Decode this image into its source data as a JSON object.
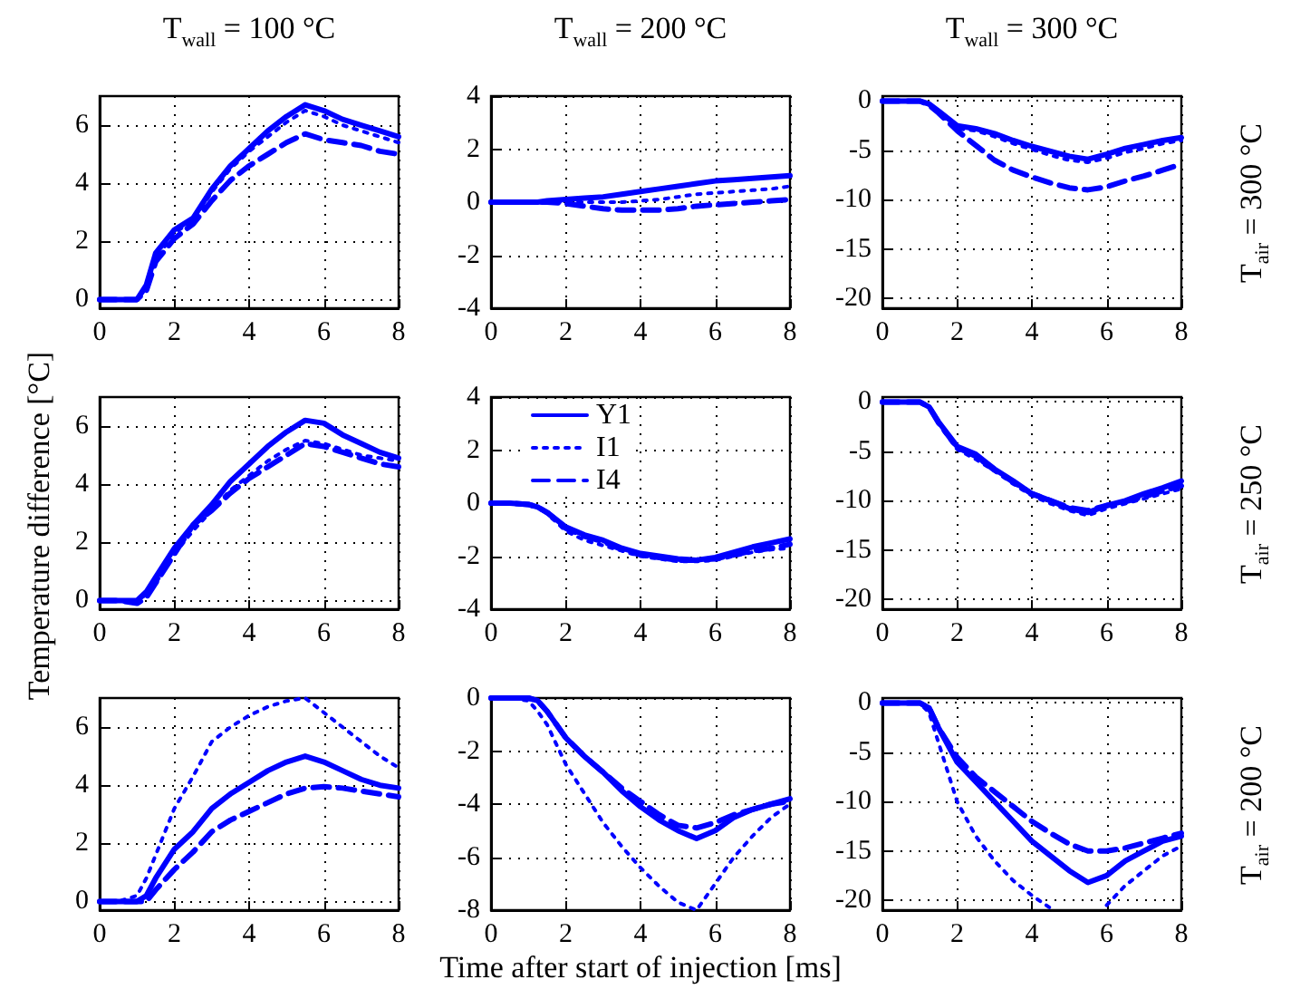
{
  "chart_data": [
    {
      "type": "line",
      "title": "T$_{wall}$ = 100 °C",
      "x": [
        0,
        0.5,
        1,
        1.25,
        1.5,
        2,
        2.5,
        3,
        3.5,
        4,
        4.5,
        5,
        5.5,
        6,
        6.5,
        7,
        7.5,
        8
      ],
      "xlim": [
        0,
        8
      ],
      "xticks": [
        0,
        2,
        4,
        6,
        8
      ],
      "ylim": [
        -0.3,
        7
      ],
      "yticks": [
        0,
        2,
        4,
        6
      ],
      "grid": true,
      "color": "#0000ff",
      "series": [
        {
          "line_style": "solid",
          "values": [
            0,
            0,
            0,
            0.5,
            1.6,
            2.4,
            2.8,
            3.8,
            4.6,
            5.2,
            5.8,
            6.3,
            6.7,
            6.5,
            6.2,
            6.0,
            5.8,
            5.6
          ]
        },
        {
          "line_style": "dotted",
          "values": [
            0,
            0,
            0,
            0.4,
            1.4,
            2.3,
            2.7,
            3.7,
            4.5,
            5.1,
            5.6,
            6.1,
            6.5,
            6.3,
            6.0,
            5.8,
            5.6,
            5.4
          ]
        },
        {
          "line_style": "dashed",
          "values": [
            0,
            0,
            0,
            0.3,
            1.3,
            2.1,
            2.6,
            3.4,
            4.1,
            4.6,
            5.0,
            5.4,
            5.7,
            5.5,
            5.4,
            5.3,
            5.1,
            5.0
          ]
        }
      ]
    },
    {
      "type": "line",
      "title": "T$_{wall}$ = 200 °C",
      "x": [
        0,
        0.5,
        1,
        1.25,
        1.5,
        2,
        2.5,
        3,
        3.5,
        4,
        4.5,
        5,
        5.5,
        6,
        6.5,
        7,
        7.5,
        8
      ],
      "xlim": [
        0,
        8
      ],
      "xticks": [
        0,
        2,
        4,
        6,
        8
      ],
      "ylim": [
        -4,
        4
      ],
      "yticks": [
        -4,
        -2,
        0,
        2,
        4
      ],
      "grid": true,
      "color": "#0000ff",
      "series": [
        {
          "line_style": "solid",
          "values": [
            0,
            0,
            0,
            0,
            0.05,
            0.1,
            0.15,
            0.2,
            0.3,
            0.4,
            0.5,
            0.6,
            0.7,
            0.8,
            0.85,
            0.9,
            0.95,
            1.0
          ]
        },
        {
          "line_style": "dotted",
          "values": [
            0,
            0,
            0,
            0,
            0,
            0,
            0,
            0,
            0,
            0.05,
            0.1,
            0.2,
            0.3,
            0.35,
            0.4,
            0.45,
            0.5,
            0.6
          ]
        },
        {
          "line_style": "dashed",
          "values": [
            0,
            0,
            0,
            0,
            0,
            -0.05,
            -0.15,
            -0.25,
            -0.3,
            -0.3,
            -0.3,
            -0.25,
            -0.15,
            -0.1,
            -0.05,
            0,
            0.05,
            0.1
          ]
        }
      ]
    },
    {
      "type": "line",
      "title": "T$_{wall}$ = 300 °C",
      "y2label": "T$_{air}$ = 300 °C",
      "x": [
        0,
        0.5,
        1,
        1.25,
        1.5,
        2,
        2.5,
        3,
        3.5,
        4,
        4.5,
        5,
        5.5,
        6,
        6.5,
        7,
        7.5,
        8
      ],
      "xlim": [
        0,
        8
      ],
      "xticks": [
        0,
        2,
        4,
        6,
        8
      ],
      "ylim": [
        -21,
        0.5
      ],
      "yticks": [
        -20,
        -15,
        -10,
        -5,
        0
      ],
      "grid": true,
      "color": "#0000ff",
      "series": [
        {
          "line_style": "solid",
          "values": [
            0,
            0,
            0,
            -0.3,
            -1,
            -2.5,
            -2.8,
            -3.3,
            -4,
            -4.6,
            -5.1,
            -5.6,
            -5.9,
            -5.4,
            -4.8,
            -4.4,
            -4,
            -3.7
          ]
        },
        {
          "line_style": "dotted",
          "values": [
            0,
            0,
            0,
            -0.4,
            -1.2,
            -2.8,
            -3,
            -3.6,
            -4.3,
            -4.9,
            -5.5,
            -6,
            -6.2,
            -5.8,
            -5.2,
            -4.8,
            -4.3,
            -4
          ]
        },
        {
          "line_style": "dashed",
          "values": [
            0,
            0,
            0,
            -0.4,
            -1.2,
            -3,
            -4.5,
            -6,
            -7,
            -7.7,
            -8.3,
            -8.8,
            -9,
            -8.7,
            -8.1,
            -7.6,
            -7,
            -6.4
          ]
        }
      ]
    },
    {
      "type": "line",
      "ylabel": "Temperature difference [°C]",
      "x": [
        0,
        0.5,
        1,
        1.25,
        1.5,
        2,
        2.5,
        3,
        3.5,
        4,
        4.5,
        5,
        5.5,
        6,
        6.5,
        7,
        7.5,
        8
      ],
      "xlim": [
        0,
        8
      ],
      "xticks": [
        0,
        2,
        4,
        6,
        8
      ],
      "ylim": [
        -0.3,
        7
      ],
      "yticks": [
        0,
        2,
        4,
        6
      ],
      "grid": true,
      "color": "#0000ff",
      "series": [
        {
          "line_style": "solid",
          "values": [
            0,
            0,
            0,
            0.3,
            0.8,
            1.8,
            2.6,
            3.3,
            4.1,
            4.7,
            5.3,
            5.8,
            6.2,
            6.1,
            5.7,
            5.4,
            5.1,
            4.9
          ]
        },
        {
          "line_style": "dotted",
          "values": [
            0,
            0,
            0,
            0.2,
            0.6,
            1.6,
            2.4,
            3.1,
            3.8,
            4.3,
            4.8,
            5.2,
            5.5,
            5.4,
            5.2,
            5.0,
            4.9,
            4.8
          ]
        },
        {
          "line_style": "dashed",
          "values": [
            0,
            0,
            -0.1,
            0.1,
            0.6,
            1.6,
            2.6,
            3.1,
            3.7,
            4.2,
            4.6,
            5.0,
            5.4,
            5.3,
            5.1,
            4.9,
            4.7,
            4.6
          ]
        }
      ]
    },
    {
      "type": "line",
      "x": [
        0,
        0.5,
        1,
        1.25,
        1.5,
        2,
        2.5,
        3,
        3.5,
        4,
        4.5,
        5,
        5.5,
        6,
        6.5,
        7,
        7.5,
        8
      ],
      "xlim": [
        0,
        8
      ],
      "xticks": [
        0,
        2,
        4,
        6,
        8
      ],
      "ylim": [
        -4,
        4
      ],
      "yticks": [
        -4,
        -2,
        0,
        2,
        4
      ],
      "grid": true,
      "legend": "top left",
      "color": "#0000ff",
      "series": [
        {
          "name": "Y1",
          "line_style": "solid",
          "values": [
            0,
            0,
            -0.05,
            -0.15,
            -0.35,
            -0.9,
            -1.2,
            -1.4,
            -1.7,
            -1.9,
            -2,
            -2.1,
            -2.15,
            -2.05,
            -1.85,
            -1.65,
            -1.5,
            -1.35
          ]
        },
        {
          "name": "I1",
          "line_style": "dotted",
          "values": [
            0,
            0,
            -0.05,
            -0.15,
            -0.4,
            -1.05,
            -1.4,
            -1.6,
            -1.8,
            -2.0,
            -2.1,
            -2.2,
            -2.2,
            -2.15,
            -2.0,
            -1.85,
            -1.75,
            -1.7
          ]
        },
        {
          "name": "I4",
          "line_style": "dashed",
          "values": [
            0,
            0,
            -0.05,
            -0.15,
            -0.35,
            -0.95,
            -1.25,
            -1.45,
            -1.75,
            -1.95,
            -2.05,
            -2.15,
            -2.15,
            -2.1,
            -1.95,
            -1.8,
            -1.7,
            -1.55
          ]
        }
      ]
    },
    {
      "type": "line",
      "y2label": "T$_{air}$ = 250 °C",
      "x": [
        0,
        0.5,
        1,
        1.25,
        1.5,
        2,
        2.5,
        3,
        3.5,
        4,
        4.5,
        5,
        5.5,
        6,
        6.5,
        7,
        7.5,
        8
      ],
      "xlim": [
        0,
        8
      ],
      "xticks": [
        0,
        2,
        4,
        6,
        8
      ],
      "ylim": [
        -21,
        0.5
      ],
      "yticks": [
        -20,
        -15,
        -10,
        -5,
        0
      ],
      "grid": true,
      "color": "#0000ff",
      "series": [
        {
          "line_style": "solid",
          "values": [
            0,
            0,
            0,
            -0.5,
            -2,
            -4.5,
            -5.3,
            -6.8,
            -8,
            -9.3,
            -10,
            -10.8,
            -11.2,
            -10.5,
            -10,
            -9.3,
            -8.7,
            -8
          ]
        },
        {
          "line_style": "dotted",
          "values": [
            0,
            0,
            0,
            -0.5,
            -2.2,
            -4.8,
            -5.8,
            -7,
            -8.3,
            -9.5,
            -10.3,
            -11,
            -11.5,
            -10.8,
            -10.3,
            -9.8,
            -9.3,
            -8.8
          ]
        },
        {
          "line_style": "dashed",
          "values": [
            0,
            0,
            0,
            -0.5,
            -2.1,
            -4.6,
            -5.5,
            -6.9,
            -8.1,
            -9.3,
            -10,
            -10.7,
            -11,
            -10.5,
            -10.1,
            -9.6,
            -9,
            -8.5
          ]
        }
      ]
    },
    {
      "type": "line",
      "x": [
        0,
        0.5,
        1,
        1.25,
        1.5,
        2,
        2.5,
        3,
        3.5,
        4,
        4.5,
        5,
        5.5,
        6,
        6.5,
        7,
        7.5,
        8
      ],
      "xlim": [
        0,
        8
      ],
      "xticks": [
        0,
        2,
        4,
        6,
        8
      ],
      "ylim": [
        -0.3,
        7
      ],
      "yticks": [
        0,
        2,
        4,
        6
      ],
      "grid": true,
      "color": "#0000ff",
      "series": [
        {
          "line_style": "solid",
          "values": [
            0,
            0,
            0,
            0.2,
            0.8,
            1.8,
            2.4,
            3.2,
            3.7,
            4.1,
            4.5,
            4.8,
            5.0,
            4.8,
            4.5,
            4.2,
            4.0,
            3.9
          ]
        },
        {
          "line_style": "dotted",
          "values": [
            0,
            0,
            0.2,
            0.8,
            1.6,
            3.2,
            4.3,
            5.5,
            6.0,
            6.4,
            6.7,
            6.9,
            7.0,
            6.5,
            6.0,
            5.5,
            5.0,
            4.6
          ]
        },
        {
          "line_style": "dashed",
          "values": [
            0,
            0,
            0,
            0,
            0.4,
            1.1,
            1.7,
            2.4,
            2.8,
            3.1,
            3.4,
            3.7,
            3.9,
            3.95,
            3.9,
            3.8,
            3.7,
            3.6
          ]
        }
      ]
    },
    {
      "type": "line",
      "xlabel": "Time after start of injection [ms]",
      "x": [
        0,
        0.5,
        1,
        1.25,
        1.5,
        2,
        2.5,
        3,
        3.5,
        4,
        4.5,
        5,
        5.5,
        6,
        6.5,
        7,
        7.5,
        8
      ],
      "xlim": [
        0,
        8
      ],
      "xticks": [
        0,
        2,
        4,
        6,
        8
      ],
      "ylim": [
        -8,
        0
      ],
      "yticks": [
        -8,
        -6,
        -4,
        -2,
        0
      ],
      "grid": true,
      "color": "#0000ff",
      "series": [
        {
          "line_style": "solid",
          "values": [
            0,
            0,
            0,
            -0.1,
            -0.5,
            -1.5,
            -2.2,
            -2.8,
            -3.5,
            -4.1,
            -4.6,
            -5.0,
            -5.3,
            -5.0,
            -4.5,
            -4.2,
            -4.0,
            -3.8
          ]
        },
        {
          "line_style": "dotted",
          "values": [
            0,
            0,
            -0.1,
            -0.5,
            -1,
            -2.5,
            -3.6,
            -4.7,
            -5.6,
            -6.4,
            -7.1,
            -7.7,
            -8,
            -7,
            -6,
            -5.2,
            -4.5,
            -4.0
          ]
        },
        {
          "line_style": "dashed",
          "values": [
            0,
            0,
            0,
            -0.1,
            -0.5,
            -1.5,
            -2.2,
            -2.8,
            -3.4,
            -3.9,
            -4.4,
            -4.8,
            -4.9,
            -4.7,
            -4.4,
            -4.2,
            -4.0,
            -3.9
          ]
        }
      ]
    },
    {
      "type": "line",
      "y2label": "T$_{air}$ = 200 °C",
      "x": [
        0,
        0.5,
        1,
        1.25,
        1.5,
        2,
        2.5,
        3,
        3.5,
        4,
        4.5,
        5,
        5.5,
        6,
        6.5,
        7,
        7.5,
        8
      ],
      "xlim": [
        0,
        8
      ],
      "xticks": [
        0,
        2,
        4,
        6,
        8
      ],
      "ylim": [
        -21,
        0.5
      ],
      "yticks": [
        -20,
        -15,
        -10,
        -5,
        0
      ],
      "grid": true,
      "color": "#0000ff",
      "series": [
        {
          "line_style": "solid",
          "values": [
            0,
            0,
            0,
            -0.5,
            -2.5,
            -6,
            -8,
            -10,
            -12,
            -14,
            -15.5,
            -17,
            -18.2,
            -17.5,
            -16,
            -15,
            -14,
            -13.5
          ]
        },
        {
          "line_style": "dotted",
          "values": [
            0,
            0,
            0,
            -1,
            -4,
            -10,
            -13.5,
            -16,
            -18,
            -19.5,
            -20.8,
            null,
            null,
            -20.5,
            -18.5,
            -17,
            -15.5,
            -14.5
          ]
        },
        {
          "line_style": "dashed",
          "values": [
            0,
            0,
            0,
            -0.5,
            -2.5,
            -5.5,
            -7.5,
            -9,
            -10.5,
            -12,
            -13.2,
            -14.3,
            -15,
            -15,
            -14.7,
            -14.2,
            -13.7,
            -13.2
          ]
        }
      ]
    }
  ]
}
